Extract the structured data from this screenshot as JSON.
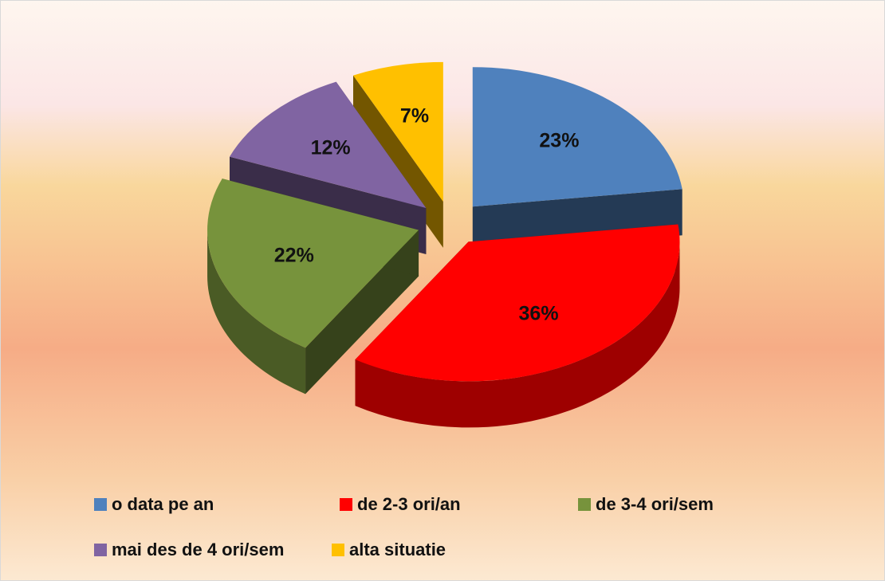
{
  "chart_data": {
    "type": "pie",
    "categories": [
      "o data pe an",
      "de 2-3 ori/an",
      "de 3-4 ori/sem",
      "mai des de 4 ori/sem",
      "alta situatie"
    ],
    "values": [
      23,
      36,
      22,
      12,
      7
    ],
    "value_labels": [
      "23%",
      "36%",
      "22%",
      "12%",
      "7%"
    ],
    "colors": [
      "#4f81bd",
      "#ff0000",
      "#77933c",
      "#8064a2",
      "#ffc000"
    ],
    "legend": "bottom"
  }
}
